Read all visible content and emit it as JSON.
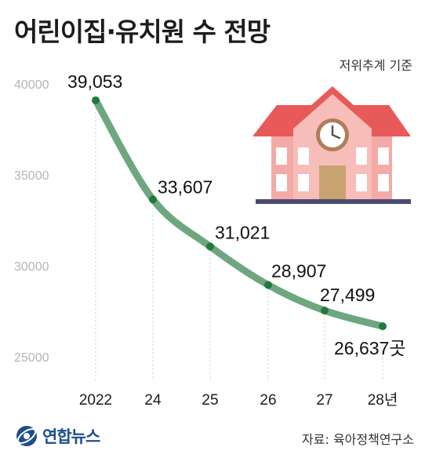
{
  "title": "어린이집·유치원 수 전망",
  "note": "저위추계 기준",
  "source": "자료: 육아정책연구소",
  "brand": "연합뉴스",
  "colors": {
    "line": "#6ea77f",
    "point": "#1f7a3c",
    "grid": "#c9c9c9",
    "tick": "#b5b5b5",
    "building": "#f4aaa6",
    "roof": "#e8595a",
    "door": "#c9a271",
    "clock_ring": "#b07d5b"
  },
  "chart_data": {
    "type": "line",
    "categories": [
      "2022",
      "24",
      "25",
      "26",
      "27",
      "28년"
    ],
    "values": [
      39053,
      33607,
      31021,
      28907,
      27499,
      26637
    ],
    "data_labels": [
      "39,053",
      "33,607",
      "31,021",
      "28,907",
      "27,499",
      "26,637곳"
    ],
    "yticks": [
      "40000",
      "35000",
      "30000",
      "25000"
    ],
    "ylim": [
      25000,
      40000
    ],
    "grid": "vertical dotted",
    "legend": "none"
  },
  "icons": {
    "illustration": "school-building-icon",
    "logo": "yonhap-logo-icon"
  }
}
